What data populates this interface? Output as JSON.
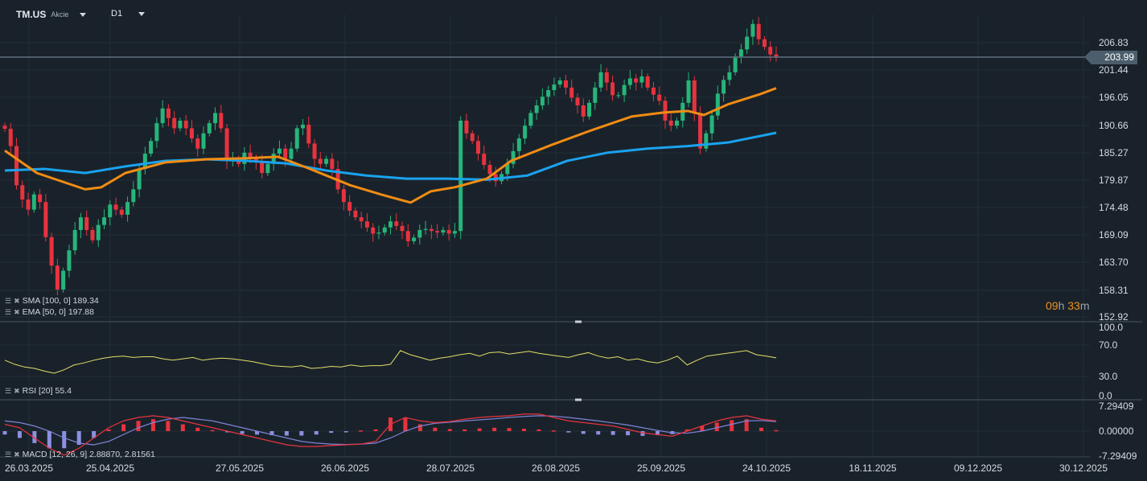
{
  "header": {
    "symbol": "TM.US",
    "type": "Akcie",
    "timeframe": "D1"
  },
  "current_price": "203.99",
  "countdown": {
    "hours": "09",
    "h": "h",
    "minutes": "33",
    "m": "m"
  },
  "indicators": {
    "sma": "SMA [100,  0] 189.34",
    "ema": "EMA [50, 0] 197.88",
    "rsi": "RSI  [20]  55.4",
    "macd": "MACD [12, 26, 9] 2.88870,  2.81561"
  },
  "price_axis": [
    "206.83",
    "201.44",
    "196.05",
    "190.66",
    "185.27",
    "179.87",
    "174.48",
    "169.09",
    "163.70",
    "158.31",
    "152.92"
  ],
  "rsi_axis": [
    "100.0",
    "70.0",
    "30.0",
    "0.0"
  ],
  "macd_axis": [
    "7.29409",
    "0.00000",
    "-7.29409"
  ],
  "date_axis": [
    "26.03.2025",
    "25.04.2025",
    "27.05.2025",
    "26.06.2025",
    "28.07.2025",
    "26.08.2025",
    "25.09.2025",
    "24.10.2025",
    "18.11.2025",
    "09.12.2025",
    "30.12.2025"
  ],
  "colors": {
    "up": "#26b57a",
    "down": "#e8333f",
    "sma": "#1aa3f0",
    "ema": "#f08c14",
    "rsi": "#e3df6a",
    "macd_line": "#e8333f",
    "signal_line": "#7d84d8",
    "hist_pos": "#e8333f",
    "hist_neg": "#8d90e0",
    "bg": "#19222a"
  },
  "chart_data": {
    "type": "candlestick",
    "ylim": [
      152.92,
      206.83
    ],
    "closes": [
      189.9,
      186.5,
      178.8,
      176,
      174,
      177,
      175.5,
      168.6,
      163,
      158.3,
      162,
      166,
      170,
      172.5,
      170,
      168,
      171,
      172.5,
      175,
      174,
      173,
      175.5,
      178,
      182,
      185,
      187.5,
      191,
      193.9,
      192,
      190,
      191.5,
      190,
      188,
      186,
      189,
      191,
      193,
      190,
      183.6,
      184,
      183,
      185.2,
      184,
      183.5,
      181.2,
      183,
      185,
      186,
      184,
      186,
      190,
      190.7,
      187,
      184,
      183,
      184,
      182,
      178,
      175.5,
      173.8,
      172.5,
      171.7,
      170.5,
      169.3,
      169.5,
      170.5,
      171.7,
      170.8,
      169.8,
      167.8,
      168.5,
      170,
      170.2,
      169.8,
      169.5,
      170,
      169.3,
      169.8,
      191.5,
      189,
      187.5,
      185,
      182.8,
      181,
      179.6,
      181,
      183,
      185.5,
      188,
      190.5,
      193,
      194.5,
      196.2,
      197.5,
      198.6,
      199.4,
      198,
      196,
      194.5,
      192.3,
      195,
      198,
      201,
      199,
      196.5,
      196.5,
      198.5,
      199.8,
      199,
      200.2,
      198,
      196.6,
      195.4,
      191.5,
      190.5,
      191.5,
      195,
      199.4,
      193,
      186,
      189,
      192.5,
      196.8,
      199.5,
      201,
      204.1,
      205.5,
      208,
      210.5,
      207.5,
      206,
      204.5,
      203.99
    ],
    "sma100": [
      [
        0,
        181.7
      ],
      [
        5,
        182.0
      ],
      [
        10,
        181.2
      ],
      [
        15,
        182.5
      ],
      [
        20,
        183.6
      ],
      [
        25,
        183.9
      ],
      [
        30,
        183.6
      ],
      [
        35,
        183.1
      ],
      [
        40,
        181.7
      ],
      [
        45,
        180.7
      ],
      [
        50,
        180.1
      ],
      [
        55,
        180.1
      ],
      [
        60,
        179.9
      ],
      [
        65,
        180.7
      ],
      [
        70,
        183.6
      ],
      [
        75,
        185.2
      ],
      [
        80,
        186.0
      ],
      [
        85,
        186.5
      ],
      [
        90,
        187.2
      ],
      [
        96,
        189.1
      ]
    ],
    "ema50": [
      [
        0,
        185.6
      ],
      [
        4,
        181.2
      ],
      [
        7,
        179.6
      ],
      [
        10,
        178.0
      ],
      [
        12,
        178.4
      ],
      [
        15,
        181.2
      ],
      [
        20,
        183.3
      ],
      [
        25,
        183.9
      ],
      [
        30,
        184.1
      ],
      [
        34,
        184.4
      ],
      [
        38,
        182.0
      ],
      [
        43,
        178.8
      ],
      [
        47,
        176.9
      ],
      [
        50.5,
        175.4
      ],
      [
        53,
        177.6
      ],
      [
        56,
        178.4
      ],
      [
        60,
        180.1
      ],
      [
        63,
        183.6
      ],
      [
        68,
        186.7
      ],
      [
        73,
        189.6
      ],
      [
        78,
        192.3
      ],
      [
        82,
        193.1
      ],
      [
        85,
        193.4
      ],
      [
        87,
        192.6
      ],
      [
        90,
        194.7
      ],
      [
        94,
        196.7
      ],
      [
        96,
        197.88
      ]
    ],
    "rsi": [
      52,
      46,
      42,
      40,
      36,
      33,
      38,
      45,
      48,
      52,
      55,
      57,
      58,
      56,
      57,
      57,
      54,
      52,
      54,
      56,
      52,
      54,
      55,
      54,
      52,
      50,
      47,
      44,
      43,
      42,
      44,
      40,
      41,
      43,
      42,
      45,
      43,
      44,
      44,
      46,
      66,
      60,
      56,
      52,
      55,
      57,
      60,
      62,
      58,
      63,
      64,
      61,
      63,
      65,
      62,
      60,
      58,
      56,
      60,
      63,
      58,
      55,
      57,
      52,
      54,
      50,
      48,
      52,
      58,
      45,
      52,
      58,
      60,
      62,
      64,
      66,
      60,
      58,
      55.4
    ],
    "macd": [
      2,
      1,
      -2,
      -5,
      -7,
      -5,
      -2,
      1,
      3,
      4,
      4.5,
      4,
      3,
      2,
      1,
      0,
      -1,
      -2,
      -3,
      -4,
      -4.5,
      -4.5,
      -4.2,
      -4,
      -3.8,
      -3,
      2,
      4,
      3,
      2.5,
      2.8,
      3.5,
      4,
      4.3,
      4.5,
      5,
      5,
      4,
      3,
      2.5,
      2,
      1.5,
      0.5,
      -0.5,
      -1,
      -1.5,
      0,
      1.5,
      3,
      4,
      4.5,
      3.5,
      3
    ],
    "signal": [
      3,
      2.5,
      1.5,
      0,
      -2,
      -3.5,
      -4,
      -3,
      -1,
      1,
      2.5,
      3.5,
      4,
      3.5,
      3,
      2,
      1,
      0,
      -1,
      -2,
      -3,
      -3.5,
      -3.8,
      -3.9,
      -3.8,
      -3.5,
      -2,
      0,
      1.5,
      2.3,
      2.6,
      3,
      3.3,
      3.6,
      4,
      4.3,
      4.5,
      4.4,
      4,
      3.5,
      3,
      2.4,
      1.8,
      1,
      0.2,
      -0.5,
      -0.6,
      0,
      1,
      2,
      3,
      3.1,
      2.8
    ],
    "hist": [
      -1,
      -2,
      -3.5,
      -5,
      -5,
      -4,
      -2,
      0.5,
      2,
      3,
      3.5,
      3,
      2,
      1,
      0.3,
      -0.3,
      -0.8,
      -1,
      -1.2,
      -1.3,
      -1.3,
      -1,
      -0.5,
      -0.2,
      0.2,
      0.5,
      4,
      4,
      2,
      1,
      0.6,
      0.5,
      0.8,
      1,
      0.9,
      0.7,
      0.5,
      0.2,
      -0.4,
      -0.8,
      -1,
      -1.1,
      -1.2,
      -1.4,
      -1.2,
      -0.9,
      0.5,
      1.5,
      2.5,
      3.2,
      3.5,
      1,
      0.3
    ],
    "rsi_range": [
      0,
      100
    ],
    "macd_range": [
      -7.29409,
      7.29409
    ]
  }
}
